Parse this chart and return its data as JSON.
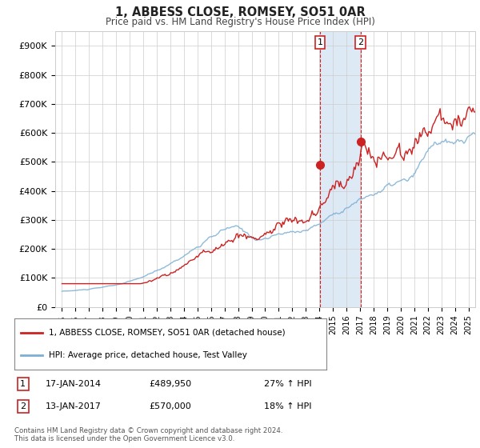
{
  "title": "1, ABBESS CLOSE, ROMSEY, SO51 0AR",
  "subtitle": "Price paid vs. HM Land Registry's House Price Index (HPI)",
  "background_color": "#ffffff",
  "grid_color": "#cccccc",
  "hpi_color": "#7bafd4",
  "price_color": "#cc2222",
  "highlight_color": "#ddeaf5",
  "transaction1": {
    "date": "17-JAN-2014",
    "price": "£489,950",
    "hpi_pct": "27%",
    "label": "1"
  },
  "transaction2": {
    "date": "13-JAN-2017",
    "price": "£570,000",
    "hpi_pct": "18%",
    "label": "2"
  },
  "legend_line1": "1, ABBESS CLOSE, ROMSEY, SO51 0AR (detached house)",
  "legend_line2": "HPI: Average price, detached house, Test Valley",
  "footer": "Contains HM Land Registry data © Crown copyright and database right 2024.\nThis data is licensed under the Open Government Licence v3.0.",
  "ylim": [
    0,
    950000
  ],
  "yticks": [
    0,
    100000,
    200000,
    300000,
    400000,
    500000,
    600000,
    700000,
    800000,
    900000
  ],
  "ytick_labels": [
    "£0",
    "£100K",
    "£200K",
    "£300K",
    "£400K",
    "£500K",
    "£600K",
    "£700K",
    "£800K",
    "£900K"
  ],
  "trans1_year": 2014.04,
  "trans2_year": 2017.04,
  "trans1_price": 489950,
  "trans2_price": 570000
}
